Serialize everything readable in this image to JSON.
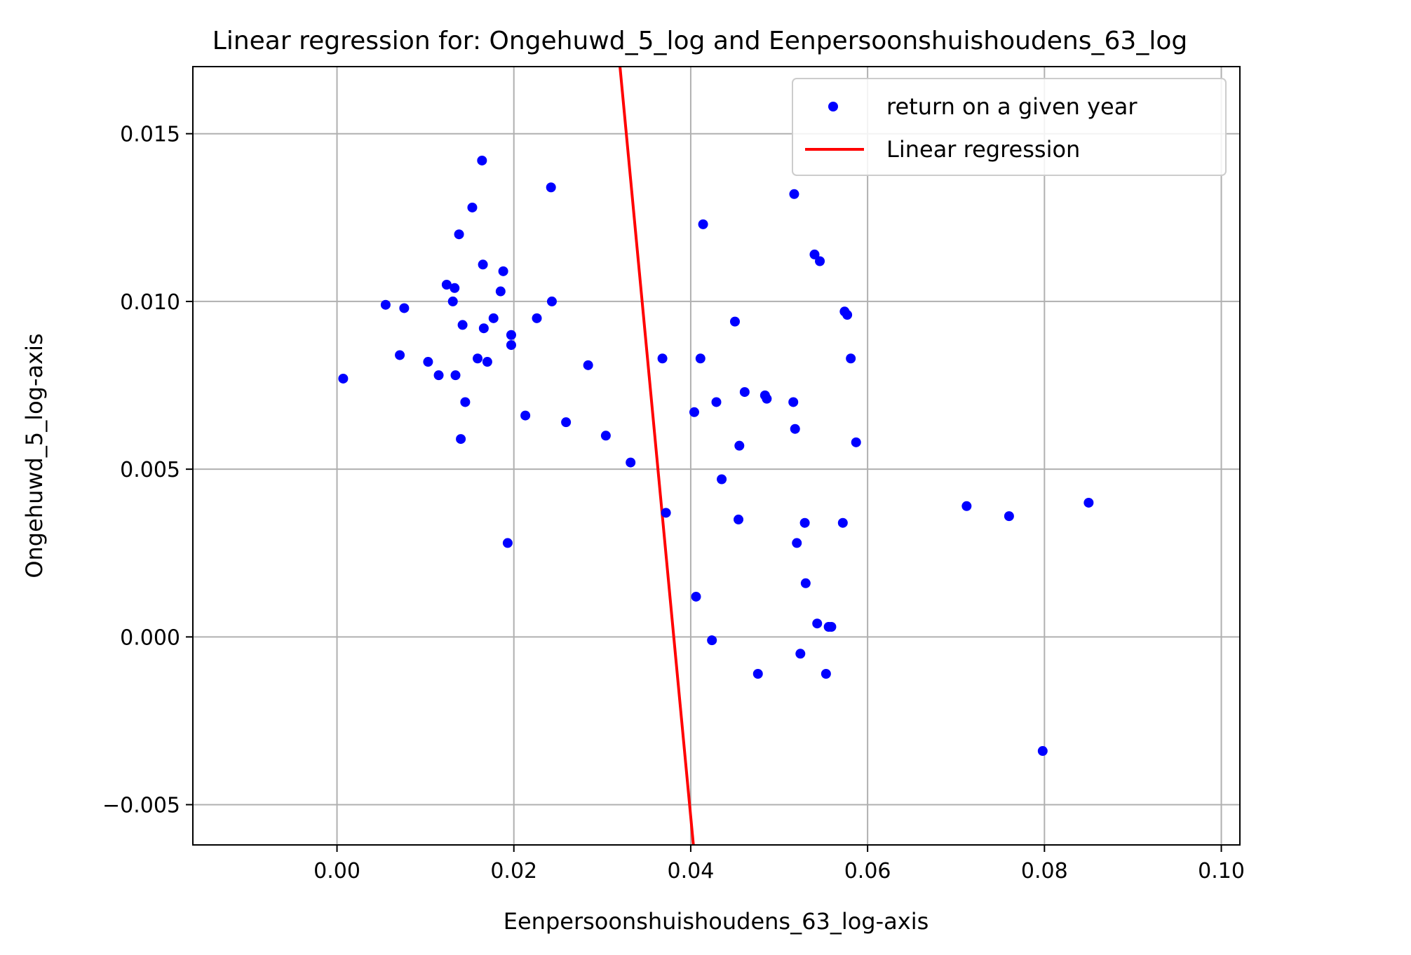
{
  "chart_data": {
    "type": "scatter",
    "title": "Linear regression for: Ongehuwd_5_log and Eenpersoonshuishoudens_63_log",
    "xlabel": "Eenpersoonshuishoudens_63_log-axis",
    "ylabel": "Ongehuwd_5_log-axis",
    "xlim": [
      -0.0163,
      0.1021
    ],
    "ylim": [
      -0.0062,
      0.017
    ],
    "x_ticks": [
      {
        "value": 0.0,
        "label": "0.00"
      },
      {
        "value": 0.02,
        "label": "0.02"
      },
      {
        "value": 0.04,
        "label": "0.04"
      },
      {
        "value": 0.06,
        "label": "0.06"
      },
      {
        "value": 0.08,
        "label": "0.08"
      },
      {
        "value": 0.1,
        "label": "0.10"
      }
    ],
    "y_ticks": [
      {
        "value": -0.005,
        "label": "−0.005"
      },
      {
        "value": 0.0,
        "label": "0.000"
      },
      {
        "value": 0.005,
        "label": "0.005"
      },
      {
        "value": 0.01,
        "label": "0.010"
      },
      {
        "value": 0.015,
        "label": "0.015"
      }
    ],
    "grid": true,
    "legend_position": "top-right",
    "series": [
      {
        "name": "return on a given year",
        "kind": "scatter",
        "color": "#0000ff",
        "points": [
          [
            0.0007,
            0.0077
          ],
          [
            0.0055,
            0.0099
          ],
          [
            0.0071,
            0.0084
          ],
          [
            0.0076,
            0.0098
          ],
          [
            0.0103,
            0.0082
          ],
          [
            0.0115,
            0.0078
          ],
          [
            0.0124,
            0.0105
          ],
          [
            0.0131,
            0.01
          ],
          [
            0.0133,
            0.0104
          ],
          [
            0.0134,
            0.0078
          ],
          [
            0.0138,
            0.012
          ],
          [
            0.014,
            0.0059
          ],
          [
            0.0142,
            0.0093
          ],
          [
            0.0145,
            0.007
          ],
          [
            0.0153,
            0.0128
          ],
          [
            0.0159,
            0.0083
          ],
          [
            0.0164,
            0.0142
          ],
          [
            0.0165,
            0.0111
          ],
          [
            0.0166,
            0.0092
          ],
          [
            0.017,
            0.0082
          ],
          [
            0.0177,
            0.0095
          ],
          [
            0.0185,
            0.0103
          ],
          [
            0.0188,
            0.0109
          ],
          [
            0.0193,
            0.0028
          ],
          [
            0.0197,
            0.009
          ],
          [
            0.0197,
            0.0087
          ],
          [
            0.0213,
            0.0066
          ],
          [
            0.0226,
            0.0095
          ],
          [
            0.0242,
            0.0134
          ],
          [
            0.0243,
            0.01
          ],
          [
            0.0259,
            0.0064
          ],
          [
            0.0284,
            0.0081
          ],
          [
            0.0304,
            0.006
          ],
          [
            0.0332,
            0.0052
          ],
          [
            0.0368,
            0.0083
          ],
          [
            0.0372,
            0.0037
          ],
          [
            0.0404,
            0.0067
          ],
          [
            0.0406,
            0.0012
          ],
          [
            0.0411,
            0.0083
          ],
          [
            0.0414,
            0.0123
          ],
          [
            0.0424,
            -0.0001
          ],
          [
            0.0429,
            0.007
          ],
          [
            0.0435,
            0.0047
          ],
          [
            0.045,
            0.0094
          ],
          [
            0.0454,
            0.0035
          ],
          [
            0.0455,
            0.0057
          ],
          [
            0.0461,
            0.0073
          ],
          [
            0.0476,
            -0.0011
          ],
          [
            0.0484,
            0.0072
          ],
          [
            0.0486,
            0.0071
          ],
          [
            0.0516,
            0.007
          ],
          [
            0.0517,
            0.0132
          ],
          [
            0.0518,
            0.0062
          ],
          [
            0.052,
            0.0028
          ],
          [
            0.0524,
            -0.0005
          ],
          [
            0.0529,
            0.0034
          ],
          [
            0.053,
            0.0016
          ],
          [
            0.054,
            0.0114
          ],
          [
            0.0543,
            0.0004
          ],
          [
            0.0546,
            0.0112
          ],
          [
            0.0553,
            -0.0011
          ],
          [
            0.0556,
            0.0003
          ],
          [
            0.0559,
            0.0003
          ],
          [
            0.0572,
            0.0034
          ],
          [
            0.0574,
            0.0097
          ],
          [
            0.0577,
            0.0096
          ],
          [
            0.0581,
            0.0083
          ],
          [
            0.0587,
            0.0058
          ],
          [
            0.0712,
            0.0039
          ],
          [
            0.076,
            0.0036
          ],
          [
            0.0798,
            -0.0034
          ],
          [
            0.085,
            0.004
          ]
        ]
      },
      {
        "name": "Linear regression",
        "kind": "line",
        "color": "#ff0000",
        "points": [
          [
            0.032,
            0.017
          ],
          [
            0.0403,
            -0.0062
          ]
        ]
      }
    ]
  }
}
